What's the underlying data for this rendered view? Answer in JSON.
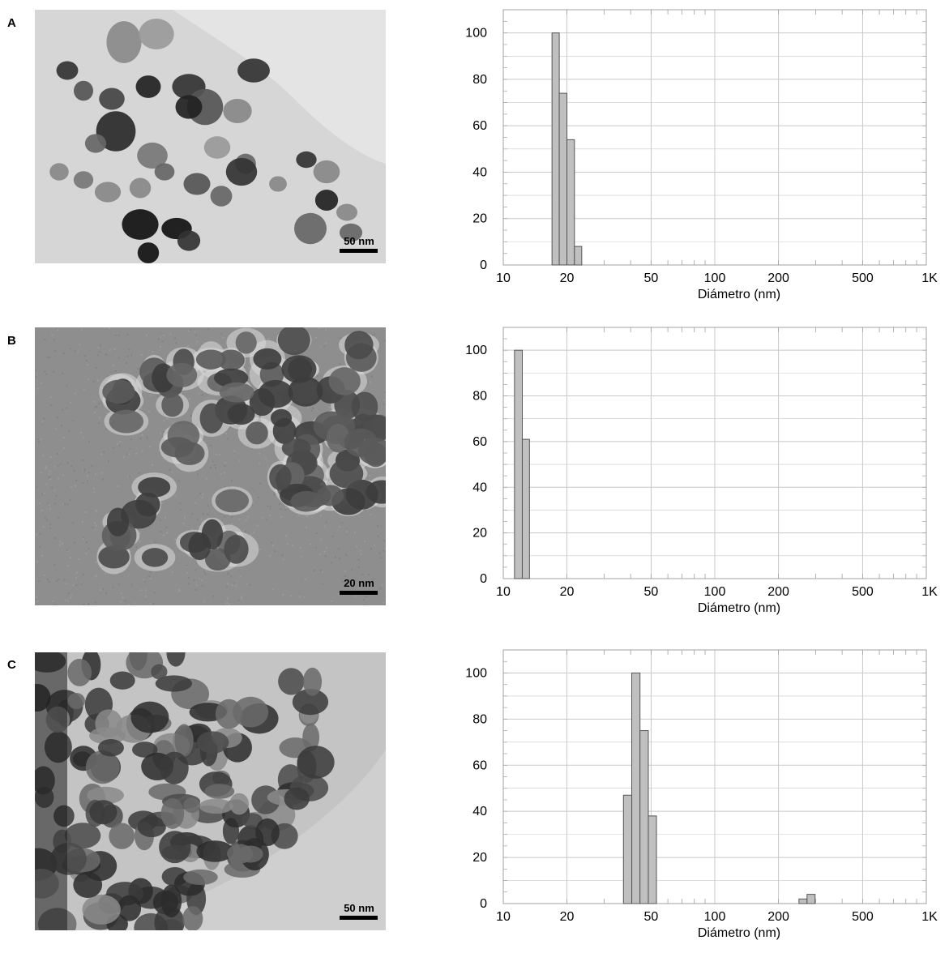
{
  "panels": [
    {
      "letter": "A",
      "scale_bar": "50 nm",
      "tem_style": "dispersed"
    },
    {
      "letter": "B",
      "scale_bar": "20 nm",
      "tem_style": "agglomerate"
    },
    {
      "letter": "C",
      "scale_bar": "50 nm",
      "tem_style": "dense"
    }
  ],
  "colors": {
    "bar_fill": "#c0c0c0",
    "bar_stroke": "#555555",
    "grid": "#c8c8c8",
    "frame": "#a0a0a0"
  },
  "chart_data": [
    {
      "type": "bar",
      "xscale": "log",
      "xlim": [
        10,
        1000
      ],
      "ylim": [
        0,
        110
      ],
      "xticks": [
        "10",
        "20",
        "50",
        "100",
        "200",
        "500",
        "1K"
      ],
      "yticks": [
        "0",
        "20",
        "40",
        "60",
        "80",
        "100"
      ],
      "xlabel": "Diámetro (nm)",
      "bars": [
        {
          "x0": 17.0,
          "x1": 18.4,
          "value": 100
        },
        {
          "x0": 18.4,
          "x1": 20.0,
          "value": 74
        },
        {
          "x0": 20.0,
          "x1": 21.7,
          "value": 54
        },
        {
          "x0": 21.7,
          "x1": 23.5,
          "value": 8
        }
      ]
    },
    {
      "type": "bar",
      "xscale": "log",
      "xlim": [
        10,
        1000
      ],
      "ylim": [
        0,
        110
      ],
      "xticks": [
        "10",
        "20",
        "50",
        "100",
        "200",
        "500",
        "1K"
      ],
      "yticks": [
        "0",
        "20",
        "40",
        "60",
        "80",
        "100"
      ],
      "xlabel": "Diámetro (nm)",
      "bars": [
        {
          "x0": 11.3,
          "x1": 12.3,
          "value": 100
        },
        {
          "x0": 12.3,
          "x1": 13.3,
          "value": 61
        }
      ]
    },
    {
      "type": "bar",
      "xscale": "log",
      "xlim": [
        10,
        1000
      ],
      "ylim": [
        0,
        110
      ],
      "xticks": [
        "10",
        "20",
        "50",
        "100",
        "200",
        "500",
        "1K"
      ],
      "yticks": [
        "0",
        "20",
        "40",
        "60",
        "80",
        "100"
      ],
      "xlabel": "Diámetro (nm)",
      "bars": [
        {
          "x0": 37.0,
          "x1": 40.5,
          "value": 47
        },
        {
          "x0": 40.5,
          "x1": 44.3,
          "value": 100
        },
        {
          "x0": 44.3,
          "x1": 48.5,
          "value": 75
        },
        {
          "x0": 48.5,
          "x1": 53.0,
          "value": 38
        },
        {
          "x0": 250,
          "x1": 273,
          "value": 2
        },
        {
          "x0": 273,
          "x1": 298,
          "value": 4
        }
      ]
    }
  ]
}
